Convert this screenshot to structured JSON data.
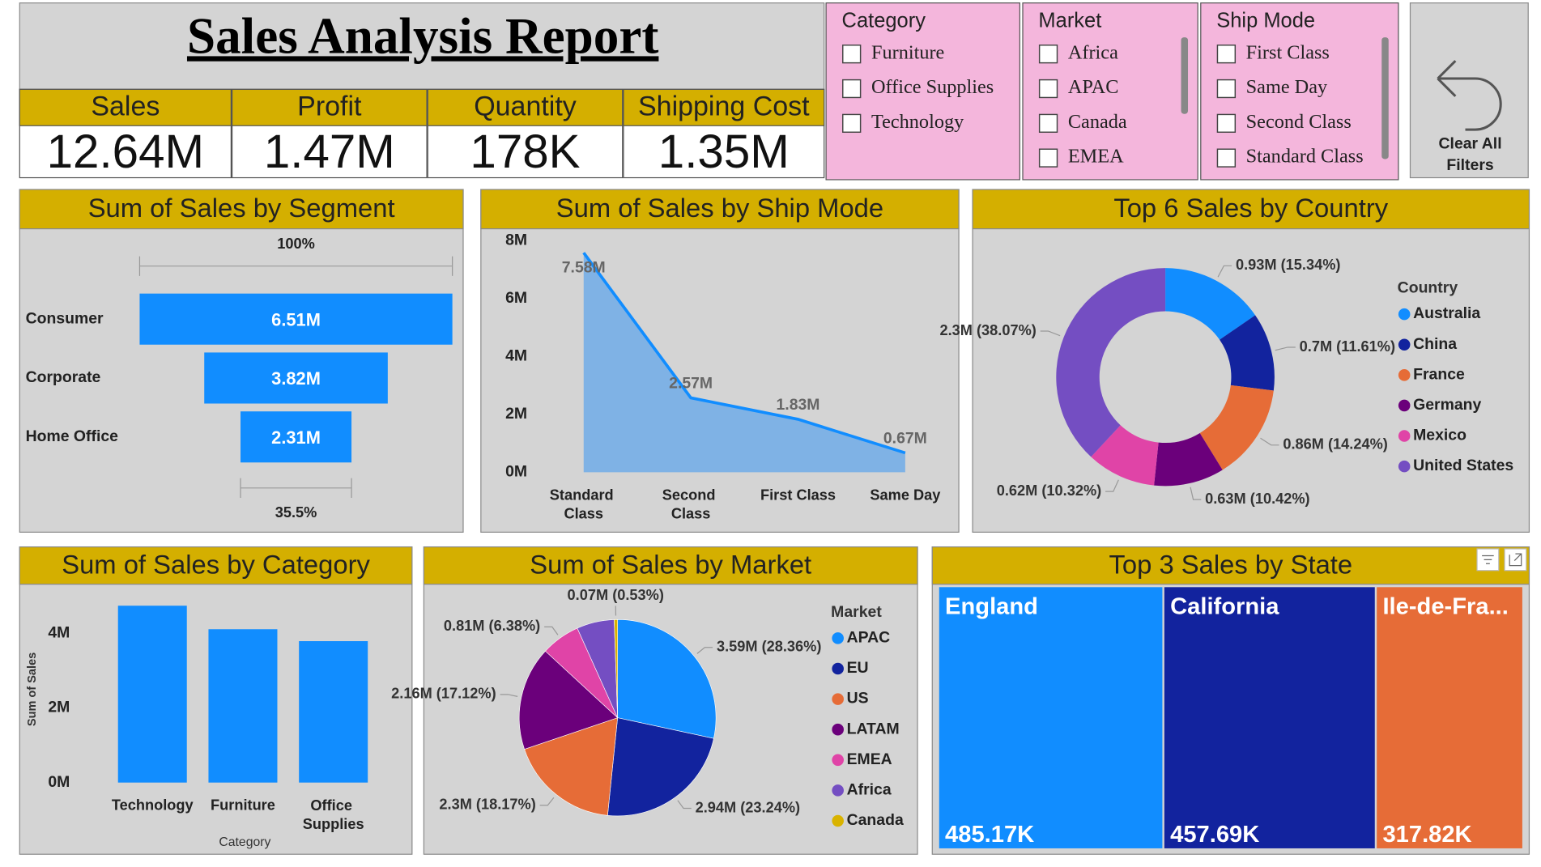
{
  "header": {
    "title": "Sales Analysis Report"
  },
  "kpis": [
    {
      "label": "Sales",
      "value": "12.64M"
    },
    {
      "label": "Profit",
      "value": "1.47M"
    },
    {
      "label": "Quantity",
      "value": "178K"
    },
    {
      "label": "Shipping Cost",
      "value": "1.35M"
    }
  ],
  "slicers": [
    {
      "title": "Category",
      "items": [
        "Furniture",
        "Office Supplies",
        "Technology"
      ]
    },
    {
      "title": "Market",
      "items": [
        "Africa",
        "APAC",
        "Canada",
        "EMEA"
      ]
    },
    {
      "title": "Ship Mode",
      "items": [
        "First Class",
        "Same Day",
        "Second Class",
        "Standard Class"
      ]
    }
  ],
  "clear_button": {
    "label_lines": [
      "Clear All",
      "Filters"
    ]
  },
  "chart_data": [
    {
      "type": "funnel",
      "title": "Sum of Sales by Segment",
      "categories": [
        "Consumer",
        "Corporate",
        "Home Office"
      ],
      "values": [
        6.51,
        3.82,
        2.31
      ],
      "value_labels": [
        "6.51M",
        "3.82M",
        "2.31M"
      ],
      "color": "#118DFF",
      "annotations": [
        "100%",
        "35.5%"
      ]
    },
    {
      "type": "area",
      "title": "Sum of Sales by Ship Mode",
      "categories": [
        "Standard Class",
        "Second Class",
        "First Class",
        "Same Day"
      ],
      "values": [
        7.58,
        2.57,
        1.83,
        0.67
      ],
      "value_labels": [
        "7.58M",
        "2.57M",
        "1.83M",
        "0.67M"
      ],
      "color": "#118DFF",
      "fill_color": "#7FB2E5",
      "ylim": [
        0,
        8
      ],
      "yticks": [
        {
          "value": 0,
          "label": "0M"
        },
        {
          "value": 2,
          "label": "2M"
        },
        {
          "value": 4,
          "label": "4M"
        },
        {
          "value": 6,
          "label": "6M"
        },
        {
          "value": 8,
          "label": "8M"
        }
      ]
    },
    {
      "type": "donut",
      "title": "Top 6 Sales by Country",
      "legend_title": "Country",
      "categories": [
        "Australia",
        "China",
        "France",
        "Germany",
        "Mexico",
        "United States"
      ],
      "values": [
        0.93,
        0.7,
        0.86,
        0.63,
        0.62,
        2.3
      ],
      "value_labels": [
        "0.93M (15.34%)",
        "0.7M (11.61%)",
        "0.86M (14.24%)",
        "0.63M (10.42%)",
        "0.62M (10.32%)",
        "2.3M (38.07%)"
      ],
      "colors": [
        "#118DFF",
        "#12239E",
        "#E66C37",
        "#6B007B",
        "#E044A7",
        "#744EC2"
      ]
    },
    {
      "type": "bar",
      "title": "Sum of Sales by Category",
      "categories": [
        "Technology",
        "Furniture",
        "Office Supplies"
      ],
      "values": [
        4.74,
        4.11,
        3.79
      ],
      "color": "#118DFF",
      "ylim": [
        0,
        5
      ],
      "yticks": [
        {
          "value": 0,
          "label": "0M"
        },
        {
          "value": 2,
          "label": "2M"
        },
        {
          "value": 4,
          "label": "4M"
        }
      ],
      "y_label": "Sum of Sales",
      "x_label": "Category"
    },
    {
      "type": "pie",
      "title": "Sum of Sales by Market",
      "legend_title": "Market",
      "categories": [
        "APAC",
        "EU",
        "US",
        "LATAM",
        "EMEA",
        "Africa",
        "Canada"
      ],
      "values": [
        3.59,
        2.94,
        2.3,
        2.16,
        0.81,
        0.78,
        0.07
      ],
      "value_labels": [
        "3.59M (28.36%)",
        "2.94M (23.24%)",
        "2.3M (18.17%)",
        "2.16M (17.12%)",
        "0.81M (6.38%)",
        null,
        "0.07M (0.53%)"
      ],
      "colors": [
        "#118DFF",
        "#12239E",
        "#E66C37",
        "#6B007B",
        "#E044A7",
        "#744EC2",
        "#D9B300"
      ]
    },
    {
      "type": "treemap",
      "title": "Top 3 Sales by State",
      "categories": [
        "England",
        "California",
        "Ile-de-Fra..."
      ],
      "values": [
        485.17,
        457.69,
        317.82
      ],
      "value_labels": [
        "485.17K",
        "457.69K",
        "317.82K"
      ],
      "colors": [
        "#118DFF",
        "#12239E",
        "#E66C37"
      ]
    }
  ]
}
